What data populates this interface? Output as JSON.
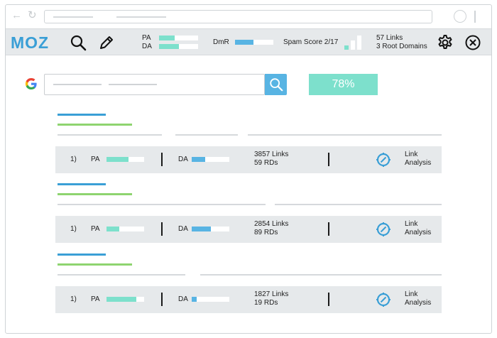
{
  "colors": {
    "accent_blue": "#3a9fd6",
    "accent_teal": "#7de0cc",
    "accent_green": "#8ed46f",
    "toolbar_bg": "#e6e9eb"
  },
  "browser": {
    "back_icon": "arrow-left-icon",
    "refresh_icon": "refresh-icon"
  },
  "mozbar": {
    "logo": "MOZ",
    "search_icon": "search-icon",
    "edit_icon": "pencil-icon",
    "pa_label": "PA",
    "pa_value": 0.4,
    "da_label": "DA",
    "da_value": 0.5,
    "dmr_label": "DmR",
    "dmr_value": 0.48,
    "spam_score": "Spam Score 2/17",
    "links": "57 Links",
    "root_domains": "3 Root Domains",
    "settings_icon": "gear-icon",
    "close_icon": "close-icon"
  },
  "search": {
    "engine_logo": "G",
    "button_icon": "search-icon",
    "score": "78%"
  },
  "results": [
    {
      "rank": "1)",
      "pa_label": "PA",
      "pa_value": 0.58,
      "da_label": "DA",
      "da_value": 0.36,
      "links": "3857 Links",
      "rds": "59 RDs",
      "link_analysis_1": "Link",
      "link_analysis_2": "Analysis"
    },
    {
      "rank": "1)",
      "pa_label": "PA",
      "pa_value": 0.34,
      "da_label": "DA",
      "da_value": 0.5,
      "links": "2854 Links",
      "rds": "89 RDs",
      "link_analysis_1": "Link",
      "link_analysis_2": "Analysis"
    },
    {
      "rank": "1)",
      "pa_label": "PA",
      "pa_value": 0.8,
      "da_label": "DA",
      "da_value": 0.14,
      "links": "1827 Links",
      "rds": "19 RDs",
      "link_analysis_1": "Link",
      "link_analysis_2": "Analysis"
    }
  ]
}
